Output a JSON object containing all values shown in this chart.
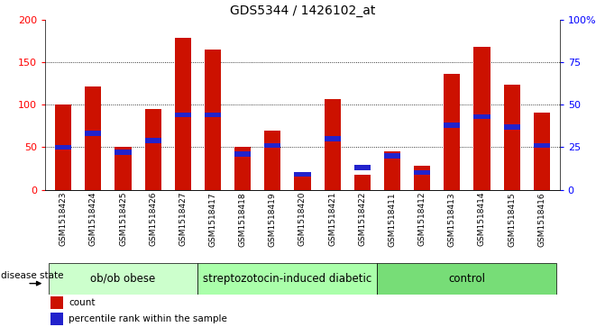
{
  "title": "GDS5344 / 1426102_at",
  "samples": [
    "GSM1518423",
    "GSM1518424",
    "GSM1518425",
    "GSM1518426",
    "GSM1518427",
    "GSM1518417",
    "GSM1518418",
    "GSM1518419",
    "GSM1518420",
    "GSM1518421",
    "GSM1518422",
    "GSM1518411",
    "GSM1518412",
    "GSM1518413",
    "GSM1518414",
    "GSM1518415",
    "GSM1518416"
  ],
  "counts": [
    100,
    121,
    50,
    95,
    179,
    165,
    50,
    69,
    19,
    107,
    18,
    45,
    28,
    136,
    168,
    124,
    91
  ],
  "percentiles": [
    25,
    33,
    22,
    29,
    44,
    44,
    21,
    26,
    9,
    30,
    13,
    20,
    10,
    38,
    43,
    37,
    26
  ],
  "groups": [
    {
      "label": "ob/ob obese",
      "start": 0,
      "end": 5
    },
    {
      "label": "streptozotocin-induced diabetic",
      "start": 5,
      "end": 11
    },
    {
      "label": "control",
      "start": 11,
      "end": 17
    }
  ],
  "group_colors": [
    "#ccffcc",
    "#aaffaa",
    "#77dd77"
  ],
  "bar_color": "#cc1100",
  "percentile_color": "#2222cc",
  "plot_bg": "#ffffff",
  "tick_area_bg": "#cccccc",
  "ylim_left": [
    0,
    200
  ],
  "ylim_right": [
    0,
    100
  ],
  "yticks_left": [
    0,
    50,
    100,
    150,
    200
  ],
  "yticks_right": [
    0,
    25,
    50,
    75,
    100
  ],
  "ytick_labels_right": [
    "0",
    "25",
    "50",
    "75",
    "100%"
  ],
  "grid_values": [
    50,
    100,
    150
  ],
  "bar_width": 0.55,
  "title_fontsize": 10,
  "tick_fontsize": 6.5,
  "legend_fontsize": 7.5,
  "group_fontsize": 8.5,
  "disease_state_fontsize": 7.5
}
